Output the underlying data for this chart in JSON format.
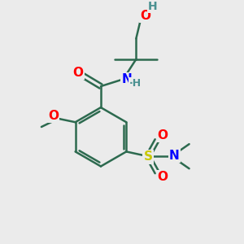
{
  "bg_color": "#ebebeb",
  "bond_color": "#2d6a4f",
  "bond_width": 1.8,
  "atom_colors": {
    "O": "#ff0000",
    "N": "#0000ff",
    "S": "#c8c800",
    "H": "#4a9090"
  },
  "font_size": 10
}
